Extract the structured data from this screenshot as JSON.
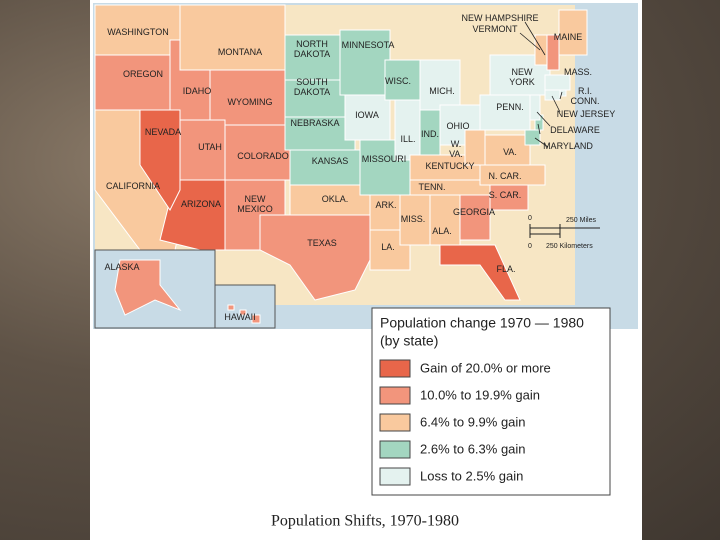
{
  "map": {
    "caption": "Population Shifts, 1970-1980",
    "legend": {
      "title": "Population change 1970 — 1980",
      "subtitle": "(by state)",
      "items": [
        {
          "label": "Gain of 20.0% or more",
          "color": "#e8664a"
        },
        {
          "label": "10.0% to 19.9% gain",
          "color": "#f2957c"
        },
        {
          "label": "6.4% to 9.9% gain",
          "color": "#f9c99e"
        },
        {
          "label": "2.6% to 6.3% gain",
          "color": "#a3d6c0"
        },
        {
          "label": "Loss to 2.5% gain",
          "color": "#e4f2ef"
        }
      ]
    },
    "scale": {
      "miles_zero": "0",
      "miles": "250 Miles",
      "km_zero": "0",
      "km": "250 Kilometers"
    },
    "states": [
      {
        "name": [
          "WASHINGTON"
        ],
        "category": 2
      },
      {
        "name": [
          "OREGON"
        ],
        "category": 1
      },
      {
        "name": [
          "CALIFORNIA"
        ],
        "category": 2
      },
      {
        "name": [
          "IDAHO"
        ],
        "category": 1
      },
      {
        "name": [
          "MONTANA"
        ],
        "category": 2
      },
      {
        "name": [
          "WYOMING"
        ],
        "category": 1
      },
      {
        "name": [
          "UTAH"
        ],
        "category": 1
      },
      {
        "name": [
          "COLORADO"
        ],
        "category": 1
      },
      {
        "name": [
          "ARIZONA"
        ],
        "category": 0
      },
      {
        "name": [
          "NEW",
          "MEXICO"
        ],
        "category": 1
      },
      {
        "name": [
          "NEVADA"
        ],
        "category": 0
      },
      {
        "name": [
          "NORTH",
          "DAKOTA"
        ],
        "category": 3
      },
      {
        "name": [
          "SOUTH",
          "DAKOTA"
        ],
        "category": 3
      },
      {
        "name": [
          "NEBRASKA"
        ],
        "category": 3
      },
      {
        "name": [
          "KANSAS"
        ],
        "category": 3
      },
      {
        "name": [
          "OKLA."
        ],
        "category": 2
      },
      {
        "name": [
          "TEXAS"
        ],
        "category": 1
      },
      {
        "name": [
          "MINNESOTA"
        ],
        "category": 3
      },
      {
        "name": [
          "IOWA"
        ],
        "category": 4
      },
      {
        "name": [
          "MISSOURI"
        ],
        "category": 3
      },
      {
        "name": [
          "ARK."
        ],
        "category": 2
      },
      {
        "name": [
          "LA."
        ],
        "category": 2
      },
      {
        "name": [
          "WISC."
        ],
        "category": 3
      },
      {
        "name": [
          "ILL."
        ],
        "category": 4
      },
      {
        "name": [
          "MICH."
        ],
        "category": 4
      },
      {
        "name": [
          "IND."
        ],
        "category": 3
      },
      {
        "name": [
          "OHIO"
        ],
        "category": 4
      },
      {
        "name": [
          "KENTUCKY"
        ],
        "category": 2
      },
      {
        "name": [
          "TENN."
        ],
        "category": 2
      },
      {
        "name": [
          "MISS."
        ],
        "category": 2
      },
      {
        "name": [
          "ALA."
        ],
        "category": 2
      },
      {
        "name": [
          "GEORGIA"
        ],
        "category": 1
      },
      {
        "name": [
          "FLA."
        ],
        "category": 0
      },
      {
        "name": [
          "S. CAR."
        ],
        "category": 1
      },
      {
        "name": [
          "N. CAR."
        ],
        "category": 2
      },
      {
        "name": [
          "VA."
        ],
        "category": 2
      },
      {
        "name": [
          "W.",
          "VA."
        ],
        "category": 2
      },
      {
        "name": [
          "PENN."
        ],
        "category": 4
      },
      {
        "name": [
          "NEW",
          "YORK"
        ],
        "category": 4
      },
      {
        "name": [
          "MARYLAND"
        ],
        "category": 3
      },
      {
        "name": [
          "DELAWARE"
        ],
        "category": 3
      },
      {
        "name": [
          "NEW JERSEY"
        ],
        "category": 4
      },
      {
        "name": [
          "CONN."
        ],
        "category": 4
      },
      {
        "name": [
          "R.I."
        ],
        "category": 4
      },
      {
        "name": [
          "MASS."
        ],
        "category": 4
      },
      {
        "name": [
          "VERMONT"
        ],
        "category": 2
      },
      {
        "name": [
          "NEW HAMPSHIRE"
        ],
        "category": 1
      },
      {
        "name": [
          "MAINE"
        ],
        "category": 2
      },
      {
        "name": [
          "ALASKA"
        ],
        "category": 1
      },
      {
        "name": [
          "HAWAII"
        ],
        "category": 1
      }
    ]
  }
}
